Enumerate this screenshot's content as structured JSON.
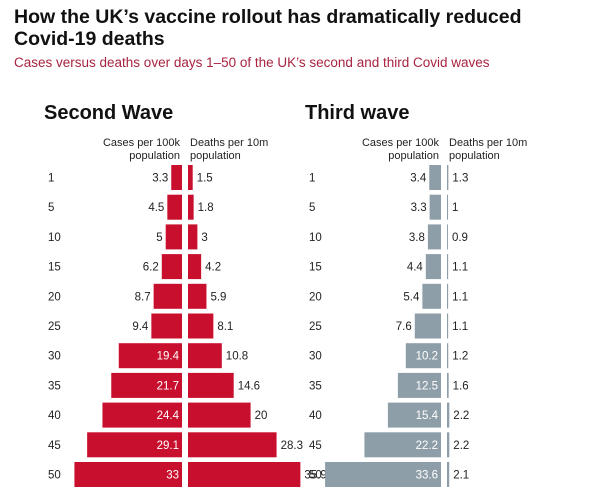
{
  "title": "How the UK’s vaccine rollout has dramatically reduced Covid-19 deaths",
  "subtitle": "Cases versus deaths over days 1–50 of the UK’s second and third Covid waves",
  "colors": {
    "second_wave": "#c8102e",
    "third_wave": "#8e9ea8",
    "subtitle": "#a8233f"
  },
  "chart_data": [
    {
      "type": "bar",
      "title": "Second Wave",
      "left_header": "Cases per 100k population",
      "right_header": "Deaths per 10m population",
      "categories": [
        "1",
        "5",
        "10",
        "15",
        "20",
        "25",
        "30",
        "35",
        "40",
        "45",
        "50"
      ],
      "series": [
        {
          "name": "Cases per 100k population",
          "values": [
            3.3,
            4.5,
            5,
            6.2,
            8.7,
            9.4,
            19.4,
            21.7,
            24.4,
            29.1,
            33
          ]
        },
        {
          "name": "Deaths per 10m population",
          "values": [
            1.5,
            1.8,
            3,
            4.2,
            5.9,
            8.1,
            10.8,
            14.6,
            20,
            28.3,
            35.9
          ]
        }
      ]
    },
    {
      "type": "bar",
      "title": "Third wave",
      "left_header": "Cases per 100k population",
      "right_header": "Deaths per 10m population",
      "categories": [
        "1",
        "5",
        "10",
        "15",
        "20",
        "25",
        "30",
        "35",
        "40",
        "45",
        "50"
      ],
      "series": [
        {
          "name": "Cases per 100k population",
          "values": [
            3.4,
            3.3,
            3.8,
            4.4,
            5.4,
            7.6,
            10.2,
            12.5,
            15.4,
            22.2,
            33.6
          ]
        },
        {
          "name": "Deaths per 10m population",
          "values": [
            1.3,
            1,
            0.9,
            1.1,
            1.1,
            1.1,
            1.2,
            1.6,
            2.2,
            2.2,
            2.1
          ]
        }
      ]
    }
  ]
}
